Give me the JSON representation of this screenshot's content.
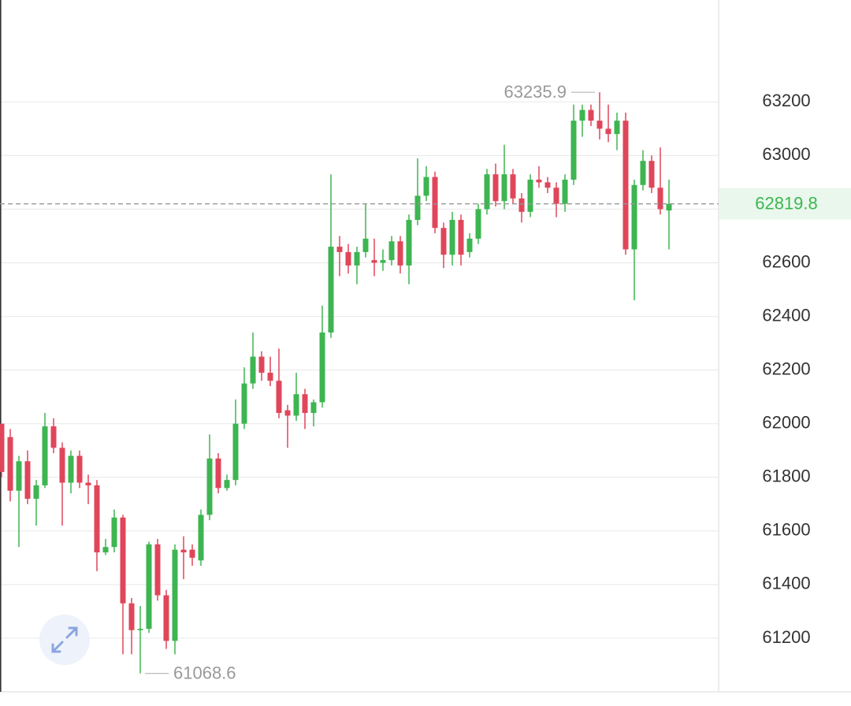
{
  "chart_data": {
    "type": "candlestick",
    "up_color": "#3db551",
    "down_color": "#e0465a",
    "grid": true,
    "ylim": [
      61000,
      63580
    ],
    "yticks": [
      61200,
      61400,
      61600,
      61800,
      62000,
      62200,
      62400,
      62600,
      62800,
      63000,
      63200
    ],
    "current_price": 62819.8,
    "max_label": 63235.9,
    "min_label": 61068.6,
    "open": [
      62000,
      61950,
      61750,
      61860,
      61720,
      61770,
      61990,
      61910,
      61780,
      61880,
      61780,
      61770,
      61520,
      61540,
      61650,
      61330,
      61230,
      61235,
      61550,
      61360,
      61190,
      61530,
      61530,
      61490,
      61660,
      61870,
      61760,
      61790,
      62000,
      62150,
      62250,
      62190,
      62160,
      62050,
      62030,
      62110,
      62040,
      62080,
      62340,
      62660,
      62640,
      62590,
      62640,
      62610,
      62600,
      62610,
      62680,
      62590,
      62760,
      62850,
      62920,
      62730,
      62630,
      62760,
      62640,
      62690,
      62800,
      62930,
      62830,
      62930,
      62840,
      62790,
      62910,
      62900,
      62880,
      62820,
      62910,
      63130,
      63170,
      63130,
      63100,
      63080,
      63130,
      62650,
      62890,
      62980,
      62880,
      62795
    ],
    "high": [
      62000,
      61980,
      61880,
      61900,
      61790,
      62040,
      62020,
      61930,
      61900,
      61900,
      61810,
      61790,
      61570,
      61680,
      61660,
      61350,
      61320,
      61560,
      61570,
      61380,
      61550,
      61580,
      61550,
      61680,
      61960,
      61890,
      61810,
      62090,
      62210,
      62340,
      62270,
      62250,
      62280,
      62070,
      62190,
      62130,
      62090,
      62440,
      62930,
      62700,
      62670,
      62660,
      62820,
      62690,
      62650,
      62700,
      62700,
      62780,
      62990,
      62960,
      62940,
      62750,
      62790,
      62780,
      62710,
      62820,
      62950,
      62970,
      63040,
      62950,
      62860,
      62930,
      62960,
      62920,
      62900,
      62930,
      63190,
      63190,
      63190,
      63235.9,
      63190,
      63160,
      63160,
      62910,
      63020,
      63000,
      63030,
      62910
    ],
    "low": [
      61800,
      61710,
      61540,
      61700,
      61620,
      61760,
      61890,
      61620,
      61740,
      61760,
      61700,
      61450,
      61510,
      61520,
      61140,
      61140,
      61068.6,
      61220,
      61340,
      61160,
      61140,
      61420,
      61470,
      61470,
      61640,
      61740,
      61750,
      61770,
      61980,
      62130,
      62160,
      62140,
      62020,
      61910,
      62010,
      61980,
      61990,
      62060,
      62320,
      62550,
      62560,
      62520,
      62620,
      62550,
      62570,
      62590,
      62560,
      62520,
      62740,
      62830,
      62710,
      62580,
      62590,
      62590,
      62620,
      62670,
      62780,
      62810,
      62800,
      62820,
      62750,
      62770,
      62880,
      62860,
      62770,
      62790,
      62890,
      63070,
      63110,
      63060,
      63050,
      63020,
      62630,
      62460,
      62870,
      62860,
      62780,
      62650
    ],
    "close": [
      61820,
      61750,
      61860,
      61720,
      61770,
      61990,
      61910,
      61780,
      61880,
      61780,
      61770,
      61520,
      61540,
      61650,
      61330,
      61230,
      61235,
      61550,
      61360,
      61190,
      61530,
      61520,
      61500,
      61660,
      61870,
      61760,
      61790,
      62000,
      62150,
      62250,
      62190,
      62160,
      62040,
      62030,
      62110,
      62040,
      62080,
      62340,
      62660,
      62640,
      62590,
      62640,
      62690,
      62600,
      62610,
      62680,
      62590,
      62760,
      62850,
      62920,
      62730,
      62630,
      62760,
      62630,
      62690,
      62800,
      62930,
      62830,
      62930,
      62840,
      62790,
      62910,
      62900,
      62880,
      62820,
      62910,
      63130,
      63170,
      63130,
      63100,
      63080,
      63130,
      62650,
      62890,
      62980,
      62880,
      62800,
      62819.8
    ]
  }
}
